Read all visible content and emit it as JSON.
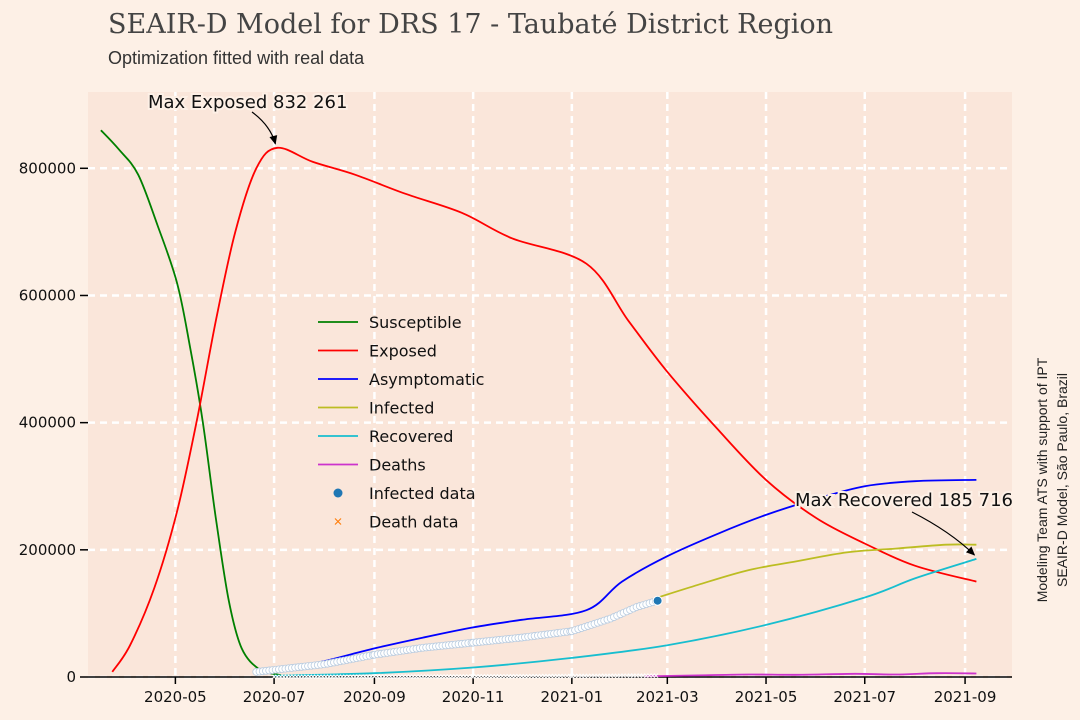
{
  "chart_data": {
    "type": "line",
    "title": "SEAIR-D Model for DRS 17 - Taubaté District Region",
    "subtitle": "Optimization fitted with real data",
    "credit_lines": [
      "Modeling Team ATS with support of IPT",
      "SEAIR-D Model, São Paulo, Brazil"
    ],
    "x_ticks": [
      "2020-05",
      "2020-07",
      "2020-09",
      "2020-11",
      "2021-01",
      "2021-03",
      "2021-05",
      "2021-07",
      "2021-09"
    ],
    "y_ticks": [
      "0",
      "200000",
      "400000",
      "600000",
      "800000"
    ],
    "xlim": [
      "2020-03-08",
      "2021-09-30"
    ],
    "ylim": [
      0,
      920000
    ],
    "grid": true,
    "legend_position": "center-left",
    "series": [
      {
        "name": "Susceptible",
        "color": "#008000",
        "points": [
          [
            "2020-03-16",
            860000
          ],
          [
            "2020-03-27",
            830000
          ],
          [
            "2020-04-08",
            790000
          ],
          [
            "2020-04-20",
            710000
          ],
          [
            "2020-05-02",
            620000
          ],
          [
            "2020-05-10",
            520000
          ],
          [
            "2020-05-18",
            400000
          ],
          [
            "2020-05-26",
            250000
          ],
          [
            "2020-06-03",
            120000
          ],
          [
            "2020-06-11",
            45000
          ],
          [
            "2020-06-22",
            12000
          ],
          [
            "2020-07-05",
            3000
          ]
        ]
      },
      {
        "name": "Exposed",
        "color": "#ff0000",
        "points": [
          [
            "2020-03-23",
            8000
          ],
          [
            "2020-04-03",
            50000
          ],
          [
            "2020-04-18",
            140000
          ],
          [
            "2020-05-02",
            260000
          ],
          [
            "2020-05-14",
            400000
          ],
          [
            "2020-05-26",
            560000
          ],
          [
            "2020-06-07",
            700000
          ],
          [
            "2020-06-20",
            800000
          ],
          [
            "2020-07-03",
            832261
          ],
          [
            "2020-07-25",
            810000
          ],
          [
            "2020-08-20",
            790000
          ],
          [
            "2020-09-20",
            760000
          ],
          [
            "2020-10-25",
            730000
          ],
          [
            "2020-11-25",
            690000
          ],
          [
            "2021-01-10",
            650000
          ],
          [
            "2021-02-05",
            560000
          ],
          [
            "2021-03-01",
            480000
          ],
          [
            "2021-04-01",
            390000
          ],
          [
            "2021-05-01",
            310000
          ],
          [
            "2021-06-01",
            250000
          ],
          [
            "2021-07-01",
            210000
          ],
          [
            "2021-08-01",
            175000
          ],
          [
            "2021-09-08",
            150000
          ]
        ]
      },
      {
        "name": "Asymptomatic",
        "color": "#0000ff",
        "points": [
          [
            "2020-07-01",
            8000
          ],
          [
            "2020-08-01",
            25000
          ],
          [
            "2020-09-01",
            45000
          ],
          [
            "2020-10-01",
            62000
          ],
          [
            "2020-11-01",
            78000
          ],
          [
            "2020-12-01",
            90000
          ],
          [
            "2021-01-10",
            105000
          ],
          [
            "2021-02-01",
            150000
          ],
          [
            "2021-03-01",
            190000
          ],
          [
            "2021-04-01",
            225000
          ],
          [
            "2021-05-01",
            255000
          ],
          [
            "2021-06-01",
            280000
          ],
          [
            "2021-07-01",
            300000
          ],
          [
            "2021-08-01",
            308000
          ],
          [
            "2021-09-08",
            310000
          ]
        ]
      },
      {
        "name": "Infected",
        "color": "#bcbd22",
        "points": [
          [
            "2021-02-23",
            125000
          ],
          [
            "2021-03-20",
            145000
          ],
          [
            "2021-04-20",
            168000
          ],
          [
            "2021-05-20",
            182000
          ],
          [
            "2021-06-20",
            196000
          ],
          [
            "2021-07-20",
            202000
          ],
          [
            "2021-08-20",
            208000
          ],
          [
            "2021-09-08",
            208000
          ]
        ]
      },
      {
        "name": "Recovered",
        "color": "#17becf",
        "points": [
          [
            "2020-07-01",
            2000
          ],
          [
            "2020-09-01",
            6000
          ],
          [
            "2020-11-01",
            15000
          ],
          [
            "2021-01-01",
            30000
          ],
          [
            "2021-03-01",
            50000
          ],
          [
            "2021-05-01",
            82000
          ],
          [
            "2021-07-01",
            125000
          ],
          [
            "2021-08-01",
            155000
          ],
          [
            "2021-09-08",
            185716
          ]
        ]
      },
      {
        "name": "Deaths",
        "color": "#cc33cc",
        "points": [
          [
            "2021-02-15",
            1000
          ],
          [
            "2021-03-20",
            2500
          ],
          [
            "2021-04-20",
            4000
          ],
          [
            "2021-05-20",
            3500
          ],
          [
            "2021-06-25",
            5000
          ],
          [
            "2021-07-20",
            4000
          ],
          [
            "2021-08-15",
            6000
          ],
          [
            "2021-09-08",
            5500
          ]
        ]
      }
    ],
    "data_series": [
      {
        "name": "Infected data",
        "color": "#1f77b4",
        "marker": "circle",
        "points": [
          [
            "2020-06-20",
            8000
          ],
          [
            "2020-08-01",
            20000
          ],
          [
            "2020-09-01",
            35000
          ],
          [
            "2020-10-01",
            46000
          ],
          [
            "2020-11-01",
            54000
          ],
          [
            "2020-12-01",
            62000
          ],
          [
            "2021-01-01",
            72000
          ],
          [
            "2021-01-25",
            92000
          ],
          [
            "2021-02-10",
            110000
          ],
          [
            "2021-02-23",
            120000
          ]
        ]
      },
      {
        "name": "Death data",
        "color": "#ff7f0e",
        "marker": "x",
        "points": [
          [
            "2020-07-01",
            200
          ],
          [
            "2020-09-01",
            600
          ],
          [
            "2020-11-01",
            1100
          ],
          [
            "2021-01-01",
            1700
          ],
          [
            "2021-02-23",
            2300
          ]
        ]
      }
    ],
    "annotations": [
      {
        "text": "Max Exposed 832 261",
        "x": "2020-07-03",
        "y": 832261
      },
      {
        "text": "Max Recovered 185 716",
        "x": "2021-09-08",
        "y": 185716
      }
    ]
  }
}
